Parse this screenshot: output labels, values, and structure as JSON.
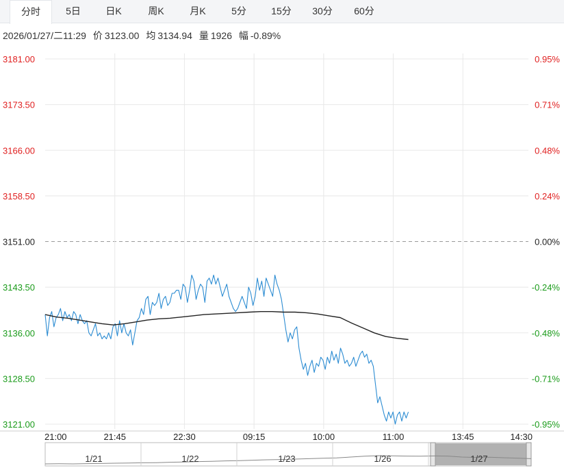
{
  "tabs": [
    {
      "label": "分时",
      "active": true
    },
    {
      "label": "5日",
      "active": false
    },
    {
      "label": "日K",
      "active": false
    },
    {
      "label": "周K",
      "active": false
    },
    {
      "label": "月K",
      "active": false
    },
    {
      "label": "5分",
      "active": false
    },
    {
      "label": "15分",
      "active": false
    },
    {
      "label": "30分",
      "active": false
    },
    {
      "label": "60分",
      "active": false
    }
  ],
  "info": {
    "datetime": "2026/01/27/二11:29",
    "price_label": "价",
    "price": "3123.00",
    "avg_label": "均",
    "avg": "3134.94",
    "volume_label": "量",
    "volume": "1926",
    "change_label": "幅",
    "change": "-0.89%"
  },
  "colors": {
    "up": "#e02020",
    "down": "#1a9b1a",
    "price_line": "#2a8bd2",
    "avg_line": "#222222",
    "grid": "#e8e8e8",
    "baseline": "#999999"
  },
  "chart_data": {
    "type": "line",
    "base_price": 3151.0,
    "ylim": [
      3121.0,
      3181.0
    ],
    "y_ticks": [
      {
        "price": "3181.00",
        "pct": "0.95%",
        "value": 3181.0
      },
      {
        "price": "3173.50",
        "pct": "0.71%",
        "value": 3173.5
      },
      {
        "price": "3166.00",
        "pct": "0.48%",
        "value": 3166.0
      },
      {
        "price": "3158.50",
        "pct": "0.24%",
        "value": 3158.5
      },
      {
        "price": "3151.00",
        "pct": "0.00%",
        "value": 3151.0
      },
      {
        "price": "3143.50",
        "pct": "-0.24%",
        "value": 3143.5
      },
      {
        "price": "3136.00",
        "pct": "-0.48%",
        "value": 3136.0
      },
      {
        "price": "3128.50",
        "pct": "-0.71%",
        "value": 3128.5
      },
      {
        "price": "3121.00",
        "pct": "-0.95%",
        "value": 3121.0
      }
    ],
    "x_ticks": [
      "21:00",
      "21:45",
      "22:30",
      "09:15",
      "10:00",
      "11:00",
      "13:45",
      "14:30"
    ],
    "x_total_minutes": 345,
    "series": [
      {
        "key": "price",
        "values": [
          3139.0,
          3135.5,
          3138.5,
          3139.5,
          3137.0,
          3138.5,
          3139.0,
          3140.0,
          3138.0,
          3139.5,
          3138.5,
          3139.0,
          3138.0,
          3139.5,
          3139.0,
          3137.5,
          3139.0,
          3138.0,
          3137.5,
          3138.0,
          3136.0,
          3135.5,
          3136.5,
          3137.5,
          3135.5,
          3136.0,
          3135.0,
          3135.5,
          3135.0,
          3136.0,
          3135.0,
          3137.0,
          3137.5,
          3135.5,
          3138.0,
          3136.0,
          3137.5,
          3136.0,
          3135.5,
          3136.5,
          3134.0,
          3136.0,
          3138.0,
          3138.5,
          3140.0,
          3139.0,
          3141.5,
          3142.0,
          3139.0,
          3141.0,
          3140.5,
          3141.0,
          3142.5,
          3140.0,
          3141.5,
          3142.0,
          3140.5,
          3141.0,
          3142.5,
          3142.5,
          3143.0,
          3143.0,
          3141.5,
          3144.0,
          3143.5,
          3141.0,
          3143.0,
          3145.5,
          3144.5,
          3141.5,
          3143.0,
          3144.0,
          3143.5,
          3141.0,
          3144.5,
          3145.0,
          3144.0,
          3145.5,
          3144.0,
          3145.0,
          3143.5,
          3142.0,
          3143.0,
          3144.0,
          3142.0,
          3141.0,
          3140.0,
          3139.5,
          3140.0,
          3141.0,
          3142.0,
          3141.0,
          3140.0,
          3143.5,
          3142.5,
          3140.5,
          3142.0,
          3145.0,
          3143.0,
          3144.5,
          3142.0,
          3145.0,
          3144.0,
          3143.0,
          3142.0,
          3145.5,
          3144.0,
          3143.0,
          3141.5,
          3139.0,
          3136.5,
          3134.5,
          3136.0,
          3135.0,
          3136.5,
          3137.0,
          3133.5,
          3131.5,
          3130.0,
          3131.0,
          3129.0,
          3130.5,
          3131.5,
          3129.5,
          3131.0,
          3130.5,
          3132.0,
          3131.5,
          3130.0,
          3132.0,
          3131.0,
          3133.0,
          3131.5,
          3132.5,
          3131.0,
          3133.5,
          3132.5,
          3131.0,
          3131.5,
          3130.5,
          3131.0,
          3132.0,
          3130.5,
          3131.5,
          3132.5,
          3133.0,
          3132.0,
          3132.5,
          3131.0,
          3131.5,
          3130.5,
          3127.5,
          3124.5,
          3125.5,
          3124.0,
          3122.5,
          3121.5,
          3123.0,
          3122.0,
          3123.0,
          3121.0,
          3122.5,
          3123.0,
          3121.5,
          3123.0,
          3122.0,
          3123.0
        ]
      },
      {
        "key": "avg",
        "values": [
          3139.0,
          3138.6,
          3138.4,
          3138.1,
          3137.8,
          3137.5,
          3137.3,
          3137.5,
          3137.8,
          3138.1,
          3138.3,
          3138.4,
          3138.6,
          3138.8,
          3139.0,
          3139.1,
          3139.2,
          3139.3,
          3139.4,
          3139.5,
          3139.5,
          3139.4,
          3139.4,
          3139.3,
          3139.1,
          3138.8,
          3138.5,
          3137.6,
          3136.8,
          3136.0,
          3135.4,
          3135.1,
          3134.9
        ]
      }
    ],
    "navigator": {
      "labels": [
        "1/21",
        "1/22",
        "1/23",
        "1/26",
        "1/27"
      ],
      "values": [
        3090,
        3091,
        3090,
        3092,
        3093,
        3095,
        3096,
        3098,
        3099,
        3102,
        3104,
        3107,
        3109,
        3112,
        3114,
        3117,
        3120,
        3122,
        3125,
        3128,
        3131,
        3134,
        3140,
        3146,
        3150,
        3149,
        3147,
        3146,
        3148,
        3147,
        3140,
        3137,
        3139,
        3135,
        3132,
        3128
      ]
    }
  }
}
